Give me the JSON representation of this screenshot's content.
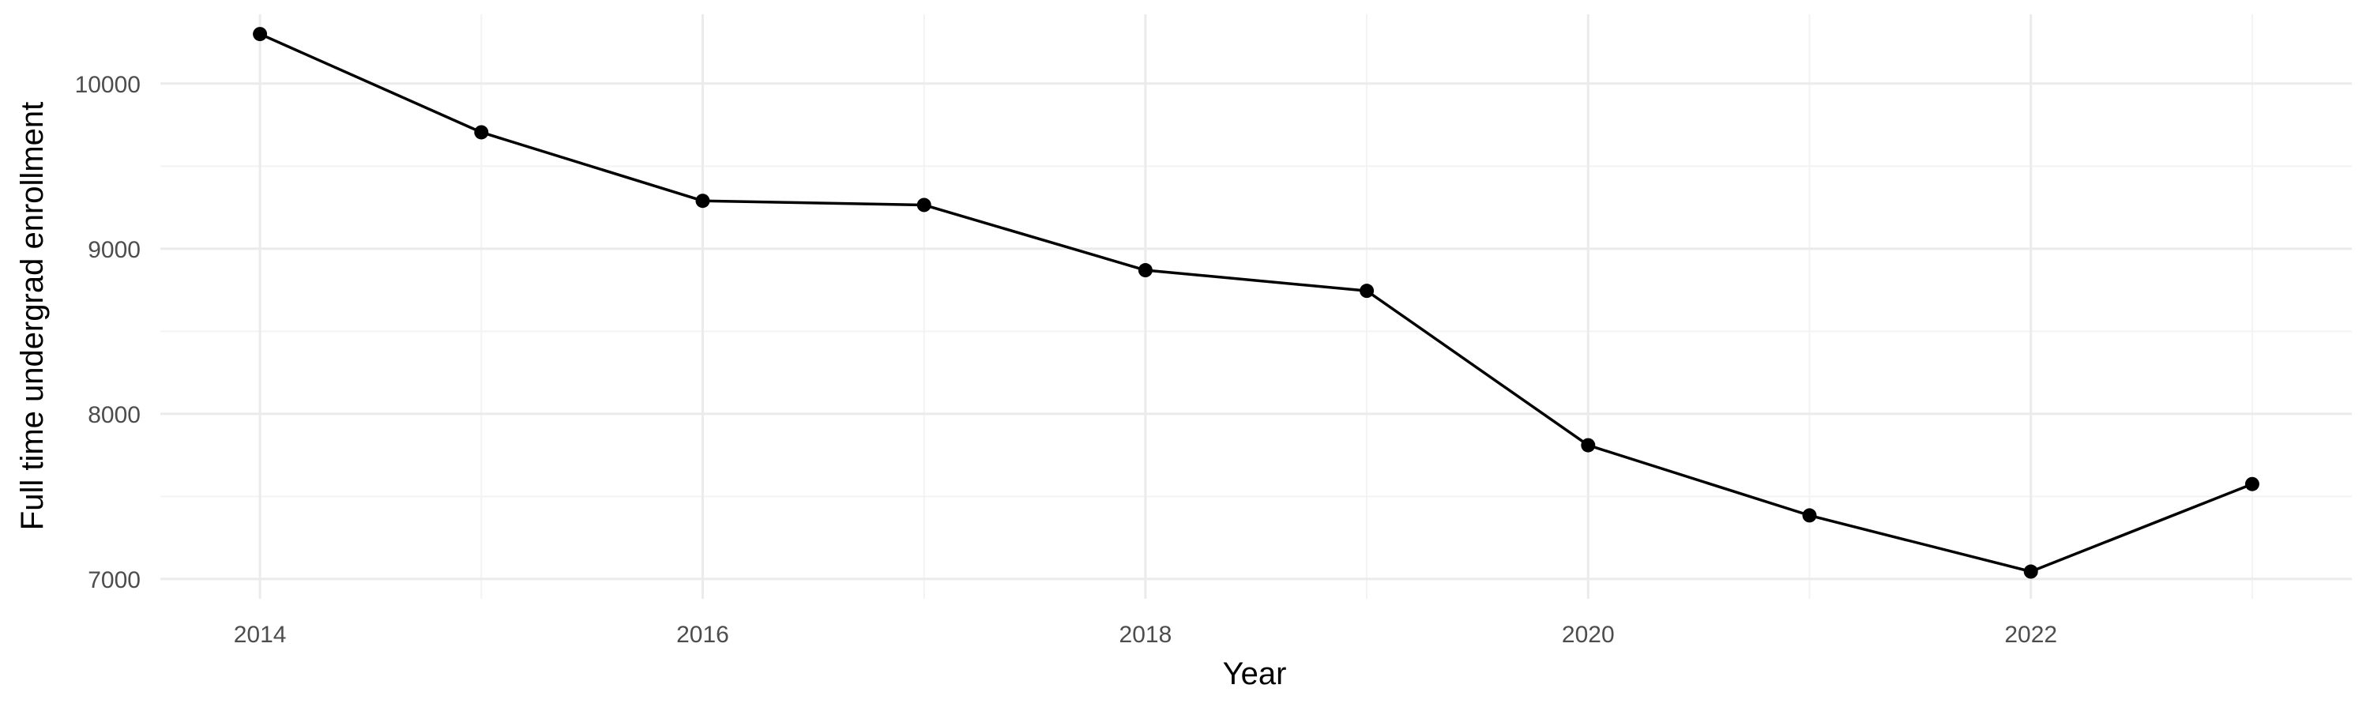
{
  "chart_data": {
    "type": "line",
    "title": "",
    "xlabel": "Year",
    "ylabel": "Full time undergrad enrollment",
    "x": [
      2014,
      2015,
      2016,
      2017,
      2018,
      2019,
      2020,
      2021,
      2022,
      2023
    ],
    "series": [
      {
        "values": [
          10300,
          9705,
          9290,
          9265,
          8870,
          8745,
          7810,
          7385,
          7045,
          7575
        ]
      }
    ],
    "x_ticks": [
      2014,
      2016,
      2018,
      2020,
      2022
    ],
    "x_tick_labels": [
      "2014",
      "2016",
      "2018",
      "2020",
      "2022"
    ],
    "y_ticks": [
      7000,
      8000,
      9000,
      10000
    ],
    "y_tick_labels": [
      "7000",
      "8000",
      "9000",
      "10000"
    ],
    "xlim": [
      2013.55,
      2023.45
    ],
    "ylim": [
      6880,
      10420
    ],
    "grid": true,
    "legend": "none",
    "colors": {
      "line": "#000000",
      "point": "#000000",
      "grid_major": "#ebebeb",
      "grid_minor": "#f3f3f3",
      "tick_text": "#4d4d4d",
      "axis_title": "#000000",
      "background": "#ffffff"
    }
  }
}
